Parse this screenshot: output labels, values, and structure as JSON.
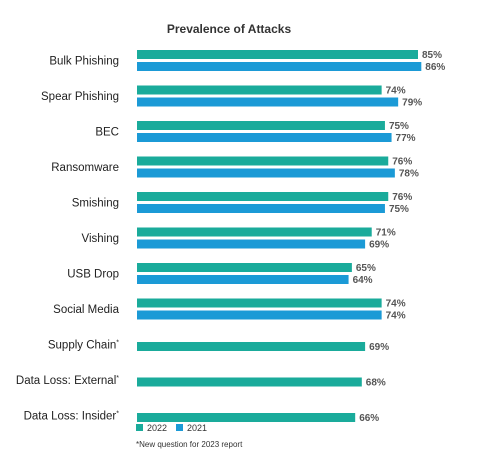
{
  "chart_data": {
    "type": "bar",
    "orientation": "horizontal",
    "title": "Prevalence of Attacks",
    "categories": [
      {
        "label": "Bulk Phishing",
        "marker": ""
      },
      {
        "label": "Spear Phishing",
        "marker": ""
      },
      {
        "label": "BEC",
        "marker": ""
      },
      {
        "label": "Ransomware",
        "marker": ""
      },
      {
        "label": "Smishing",
        "marker": ""
      },
      {
        "label": "Vishing",
        "marker": ""
      },
      {
        "label": "USB Drop",
        "marker": ""
      },
      {
        "label": "Social Media",
        "marker": ""
      },
      {
        "label": "Supply Chain",
        "marker": "*"
      },
      {
        "label": "Data Loss: External",
        "marker": "*"
      },
      {
        "label": "Data Loss: Insider",
        "marker": "*"
      }
    ],
    "series": [
      {
        "name": "2022",
        "color": "#1aab9b",
        "values": [
          85,
          74,
          75,
          76,
          76,
          71,
          65,
          74,
          69,
          68,
          66
        ]
      },
      {
        "name": "2021",
        "color": "#1b9ad6",
        "values": [
          86,
          79,
          77,
          78,
          75,
          69,
          64,
          74,
          null,
          null,
          null
        ]
      }
    ],
    "value_suffix": "%",
    "xlim": [
      0,
      100
    ],
    "grid": false,
    "legend": "bottom-left",
    "footnote": "*New question for 2023 report"
  }
}
